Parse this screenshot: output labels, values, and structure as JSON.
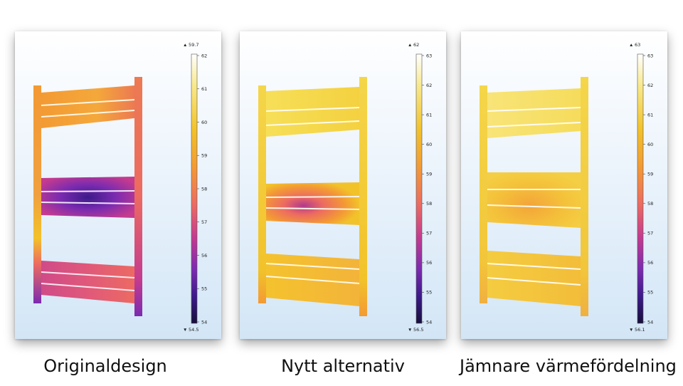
{
  "panels": [
    {
      "caption": "Originaldesign",
      "colorbar": {
        "max_label": "59.7",
        "min_label": "54.5",
        "ticks": [
          "62",
          "61",
          "60",
          "59",
          "58",
          "57",
          "56",
          "55",
          "54"
        ]
      },
      "temperature_max": 59.7,
      "temperature_min": 54.5
    },
    {
      "caption": "Nytt alternativ",
      "colorbar": {
        "max_label": "62",
        "min_label": "56.5",
        "ticks": [
          "63",
          "62",
          "61",
          "60",
          "59",
          "58",
          "57",
          "56",
          "55",
          "54"
        ]
      },
      "temperature_max": 62,
      "temperature_min": 56.5
    },
    {
      "caption": "Jämnare värmefördelning",
      "colorbar": {
        "max_label": "63",
        "min_label": "56.1",
        "ticks": [
          "63",
          "62",
          "61",
          "60",
          "59",
          "58",
          "57",
          "56",
          "55",
          "54"
        ]
      },
      "temperature_max": 63,
      "temperature_min": 56.1
    }
  ],
  "colormap": [
    "#ffffff",
    "#f8e88a",
    "#f2c22a",
    "#f39a34",
    "#ec6a62",
    "#c43b8f",
    "#7b2bb0",
    "#3c1a8a",
    "#170f3c"
  ]
}
